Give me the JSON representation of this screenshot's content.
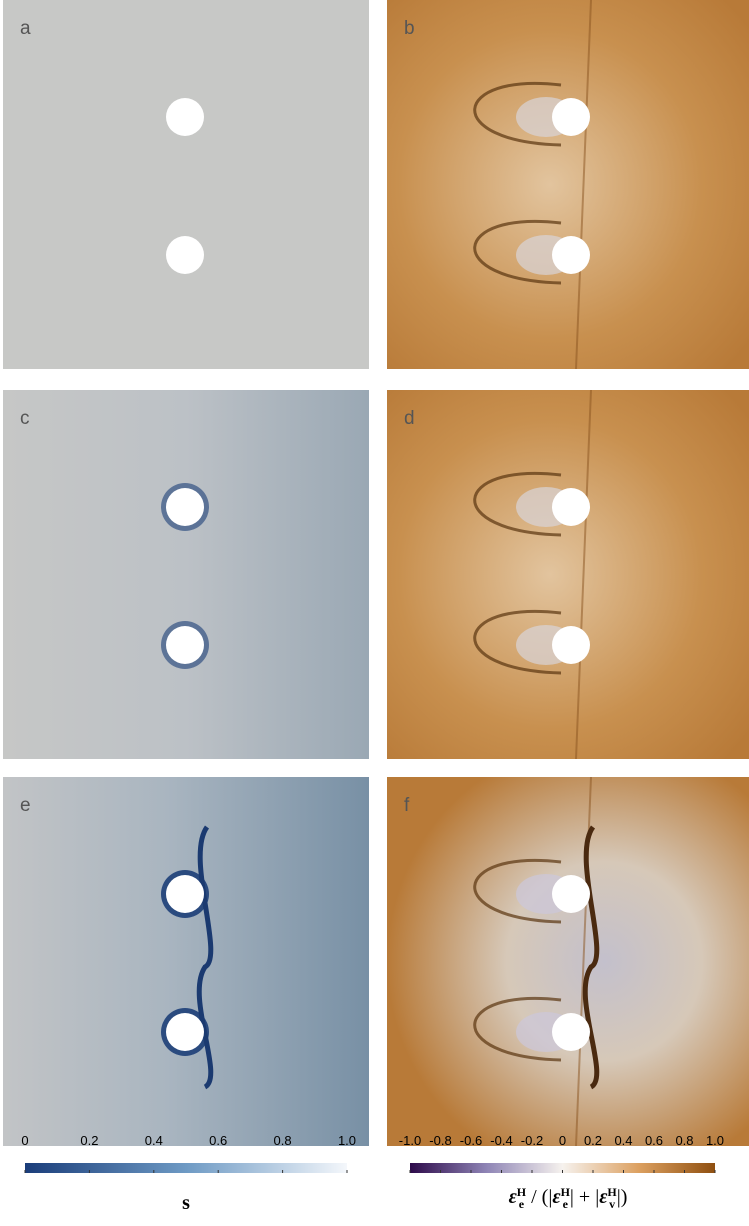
{
  "panels": [
    {
      "label": "a"
    },
    {
      "label": "b"
    },
    {
      "label": "c"
    },
    {
      "label": "d"
    },
    {
      "label": "e"
    },
    {
      "label": "f"
    }
  ],
  "colorbars": [
    {
      "ticks": [
        "0",
        "0.2",
        "0.4",
        "0.6",
        "0.8",
        "1.0"
      ],
      "label": [
        "s"
      ]
    },
    {
      "ticks": [
        "-1.0",
        "-0.8",
        "-0.6",
        "-0.4",
        "-0.2",
        "0",
        "0.2",
        "0.4",
        "0.6",
        "0.8",
        "1.0"
      ],
      "label": [
        "ε",
        "H",
        "e",
        " / (|",
        "ε",
        "H",
        "e",
        "| + |",
        "ε",
        "H",
        "v",
        "|)"
      ]
    }
  ]
}
